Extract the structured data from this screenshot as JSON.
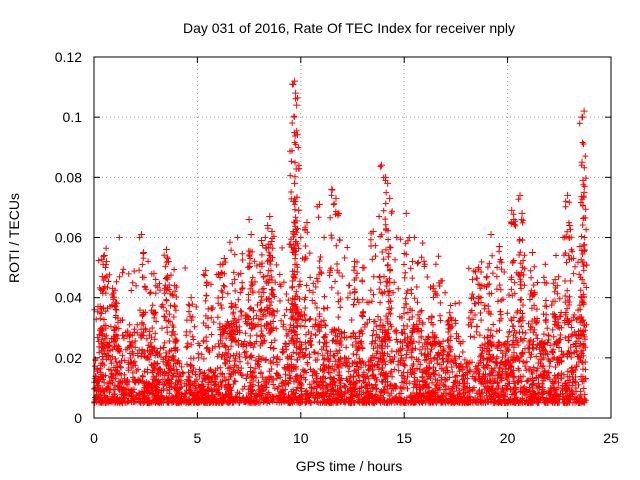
{
  "chart_data": {
    "type": "scatter",
    "title": "Day 031 of 2016, Rate Of TEC Index for receiver nply",
    "xlabel": "GPS time / hours",
    "ylabel": "ROTI / TECUs",
    "xlim": [
      0,
      25
    ],
    "ylim": [
      0,
      0.12
    ],
    "xticks": [
      0,
      5,
      10,
      15,
      20,
      25
    ],
    "xtick_labels": [
      "0",
      "5",
      "10",
      "15",
      "20",
      "25"
    ],
    "yticks": [
      0,
      0.02,
      0.04,
      0.06,
      0.08,
      0.1,
      0.12
    ],
    "ytick_labels": [
      "0",
      "0.02",
      "0.04",
      "0.06",
      "0.08",
      "0.1",
      "0.12"
    ],
    "grid": true,
    "marker": "+",
    "series": [
      {
        "name": "ROTI",
        "color": "#ff0000",
        "note": "dense cloud of ~0.005-0.03 background values spanning 0-23.8 h; listed points are the visible peaks/outliers",
        "x": [
          0.3,
          0.4,
          0.5,
          0.6,
          0.9,
          1.1,
          2.3,
          2.4,
          2.9,
          3.5,
          3.6,
          3.9,
          4.7,
          5.4,
          6.1,
          6.3,
          6.8,
          7.1,
          7.5,
          7.6,
          8.1,
          8.4,
          8.5,
          8.6,
          9.6,
          9.7,
          9.75,
          9.8,
          9.7,
          9.65,
          9.9,
          10.3,
          10.9,
          11.5,
          11.7,
          11.8,
          12.6,
          13.0,
          13.5,
          13.9,
          14.1,
          14.2,
          14.3,
          15.1,
          15.4,
          16.4,
          17.2,
          18.3,
          18.6,
          19.0,
          19.2,
          19.6,
          20.2,
          20.3,
          20.6,
          20.7,
          21.2,
          21.8,
          22.3,
          22.4,
          22.9,
          23.0,
          23.5,
          23.6,
          23.65,
          23.7,
          23.6,
          23.7
        ],
        "values": [
          0.037,
          0.047,
          0.054,
          0.052,
          0.043,
          0.038,
          0.061,
          0.055,
          0.048,
          0.056,
          0.052,
          0.044,
          0.04,
          0.049,
          0.051,
          0.053,
          0.046,
          0.048,
          0.066,
          0.061,
          0.059,
          0.064,
          0.067,
          0.062,
          0.111,
          0.112,
          0.108,
          0.104,
          0.078,
          0.072,
          0.069,
          0.065,
          0.071,
          0.076,
          0.073,
          0.068,
          0.052,
          0.05,
          0.062,
          0.084,
          0.08,
          0.078,
          0.073,
          0.068,
          0.052,
          0.043,
          0.035,
          0.046,
          0.05,
          0.047,
          0.061,
          0.057,
          0.069,
          0.066,
          0.074,
          0.068,
          0.055,
          0.045,
          0.046,
          0.044,
          0.074,
          0.064,
          0.057,
          0.085,
          0.079,
          0.102,
          0.1,
          0.075
        ]
      }
    ]
  }
}
